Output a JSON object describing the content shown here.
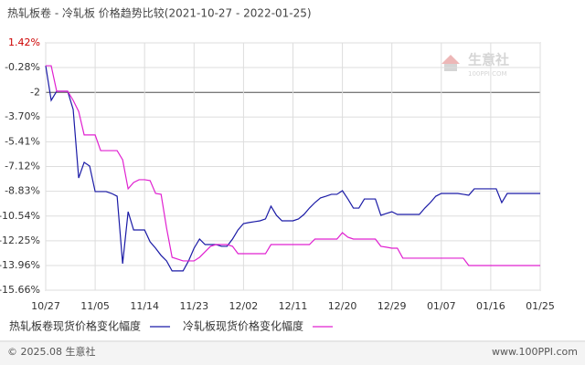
{
  "chart_data": {
    "type": "line",
    "title": "热轧板卷 - 冷轧板 价格趋势比较(2021-10-27 - 2022-01-25)",
    "categories": [
      "10/27",
      null,
      null,
      null,
      null,
      null,
      null,
      null,
      null,
      "11/05",
      null,
      null,
      null,
      null,
      null,
      null,
      null,
      null,
      "11/14",
      null,
      null,
      null,
      null,
      null,
      null,
      null,
      null,
      "11/23",
      null,
      null,
      null,
      null,
      null,
      null,
      null,
      null,
      "12/02",
      null,
      null,
      null,
      null,
      null,
      null,
      null,
      null,
      "12/11",
      null,
      null,
      null,
      null,
      null,
      null,
      null,
      null,
      "12/20",
      null,
      null,
      null,
      null,
      null,
      null,
      null,
      null,
      "12/29",
      null,
      null,
      null,
      null,
      null,
      null,
      null,
      null,
      "01/07",
      null,
      null,
      null,
      null,
      null,
      null,
      null,
      null,
      "01/16",
      null,
      null,
      null,
      null,
      null,
      null,
      null,
      null,
      "01/25"
    ],
    "series": [
      {
        "name": "热轧板卷现货价格变化幅度",
        "color": "#1a1aa6",
        "values": [
          -0.16,
          -2.55,
          -1.92,
          -1.92,
          -1.92,
          -3.18,
          -7.91,
          -6.83,
          -7.09,
          -8.85,
          -8.85,
          -8.85,
          -8.98,
          -9.17,
          -13.83,
          -10.24,
          -11.5,
          -11.5,
          -11.5,
          -12.32,
          -12.76,
          -13.26,
          -13.64,
          -14.33,
          -14.33,
          -14.33,
          -13.64,
          -12.76,
          -12.13,
          -12.51,
          -12.51,
          -12.51,
          -12.63,
          -12.63,
          -12.13,
          -11.5,
          -11.06,
          -10.99,
          -10.93,
          -10.87,
          -10.74,
          -9.86,
          -10.49,
          -10.87,
          -10.87,
          -10.87,
          -10.74,
          -10.43,
          -9.99,
          -9.61,
          -9.29,
          -9.17,
          -9.04,
          -9.04,
          -8.79,
          -9.36,
          -9.99,
          -9.99,
          -9.36,
          -9.36,
          -9.36,
          -10.49,
          -10.36,
          -10.24,
          -10.43,
          -10.43,
          -10.43,
          -10.43,
          -10.43,
          -9.99,
          -9.61,
          -9.17,
          -8.98,
          -8.98,
          -8.98,
          -8.98,
          -9.04,
          -9.1,
          -8.66,
          -8.66,
          -8.66,
          -8.66,
          -8.66,
          -9.61,
          -8.98,
          -8.98,
          -8.98,
          -8.98,
          -8.98,
          -8.98,
          -8.98
        ]
      },
      {
        "name": "冷轧板现货价格变化幅度",
        "color": "#e020d0",
        "values": [
          -0.16,
          -0.16,
          -1.92,
          -1.92,
          -1.92,
          -2.55,
          -3.31,
          -4.94,
          -4.94,
          -4.94,
          -6.02,
          -6.02,
          -6.02,
          -6.02,
          -6.65,
          -8.66,
          -8.22,
          -8.03,
          -8.03,
          -8.09,
          -8.98,
          -9.04,
          -11.37,
          -13.39,
          -13.51,
          -13.64,
          -13.64,
          -13.64,
          -13.39,
          -13.01,
          -12.63,
          -12.51,
          -12.51,
          -12.51,
          -12.63,
          -13.14,
          -13.14,
          -13.14,
          -13.14,
          -13.14,
          -13.14,
          -12.51,
          -12.51,
          -12.51,
          -12.51,
          -12.51,
          -12.51,
          -12.51,
          -12.51,
          -12.13,
          -12.13,
          -12.13,
          -12.13,
          -12.13,
          -11.69,
          -12.0,
          -12.13,
          -12.13,
          -12.13,
          -12.13,
          -12.13,
          -12.63,
          -12.69,
          -12.76,
          -12.76,
          -13.45,
          -13.45,
          -13.45,
          -13.45,
          -13.45,
          -13.45,
          -13.45,
          -13.45,
          -13.45,
          -13.45,
          -13.45,
          -13.45,
          -13.96,
          -13.96,
          -13.96,
          -13.96,
          -13.96,
          -13.96,
          -13.96,
          -13.96,
          -13.96,
          -13.96,
          -13.96,
          -13.96,
          -13.96,
          -13.96
        ]
      }
    ],
    "ylim": [
      -15.66,
      1.42
    ],
    "yticks": [
      {
        "value": 1.42,
        "label": "1.42%"
      },
      {
        "value": -0.28,
        "label": "-0.28%"
      },
      -2,
      {
        "value": -3.7,
        "label": "-3.70%"
      },
      {
        "value": -5.41,
        "label": "-5.41%"
      },
      {
        "value": -7.12,
        "label": "-7.12%"
      },
      {
        "value": -8.83,
        "label": "-8.83%"
      },
      {
        "value": -10.54,
        "label": "-10.54%"
      },
      {
        "value": -12.25,
        "label": "-12.25%"
      },
      {
        "value": -13.96,
        "label": "-13.96%"
      },
      {
        "value": -15.66,
        "label": "-15.66%"
      }
    ],
    "reference_line": -2,
    "grid": true,
    "watermark": {
      "name": "生意社",
      "site": "100PPI.COM"
    }
  },
  "footer": {
    "left": "© 2025.08 生意社",
    "right": "www.100PPI.com"
  }
}
